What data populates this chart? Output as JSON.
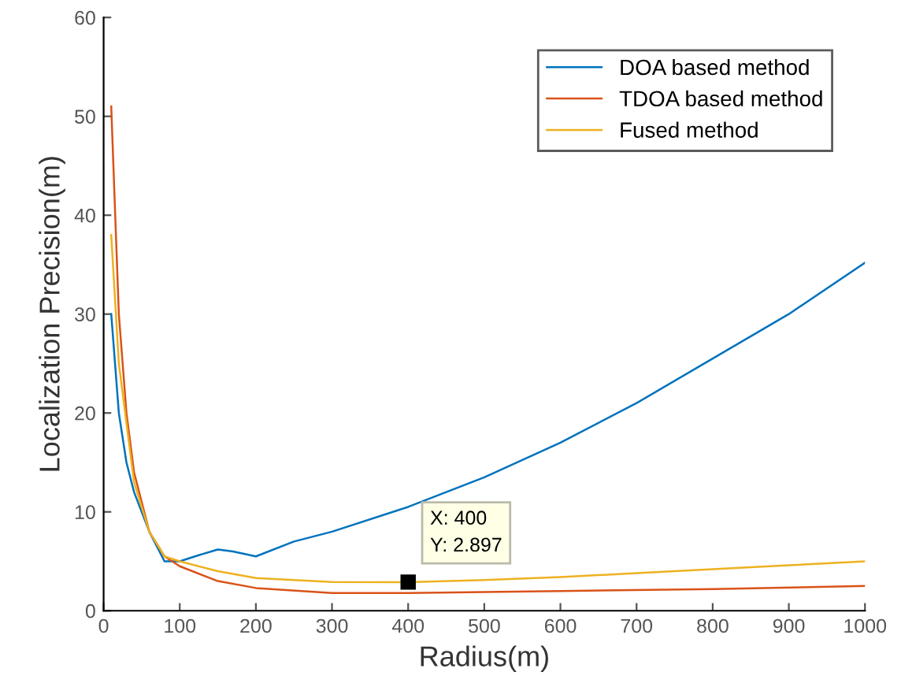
{
  "chart_data": {
    "type": "line",
    "xlabel": "Radius(m)",
    "ylabel": "Localization Precision(m)",
    "xlim": [
      0,
      1000
    ],
    "ylim": [
      0,
      60
    ],
    "xticks": [
      0,
      100,
      200,
      300,
      400,
      500,
      600,
      700,
      800,
      900,
      1000
    ],
    "yticks": [
      0,
      10,
      20,
      30,
      40,
      50,
      60
    ],
    "grid": false,
    "legend": "top right",
    "line_style": "solid",
    "marker": "none",
    "series": [
      {
        "name": "DOA based method",
        "color": "#0072bd",
        "x": [
          10,
          20,
          30,
          40,
          60,
          80,
          100,
          120,
          150,
          170,
          200,
          250,
          300,
          400,
          500,
          600,
          700,
          800,
          900,
          1000
        ],
        "values": [
          30,
          20,
          15,
          12,
          8,
          5,
          5,
          5.5,
          6.2,
          6,
          5.5,
          7,
          8,
          10.5,
          13.5,
          17,
          21,
          25.5,
          30,
          35.2
        ]
      },
      {
        "name": "TDOA based method",
        "color": "#d95319",
        "x": [
          10,
          20,
          30,
          40,
          60,
          80,
          100,
          150,
          200,
          300,
          400,
          600,
          800,
          1000
        ],
        "values": [
          51,
          30,
          20,
          14,
          8,
          5.5,
          4.5,
          3,
          2.3,
          1.8,
          1.8,
          2,
          2.2,
          2.5
        ]
      },
      {
        "name": "Fused method",
        "color": "#edb120",
        "x": [
          10,
          20,
          40,
          60,
          80,
          100,
          150,
          200,
          300,
          400,
          500,
          600,
          700,
          800,
          900,
          1000
        ],
        "values": [
          38,
          25,
          13,
          8,
          5.5,
          5,
          4,
          3.3,
          2.9,
          2.897,
          3.1,
          3.4,
          3.8,
          4.2,
          4.6,
          5
        ]
      }
    ],
    "annotations": [
      {
        "text": "X: 400\nY: 2.897",
        "x": 400,
        "y": 2.897
      }
    ]
  }
}
